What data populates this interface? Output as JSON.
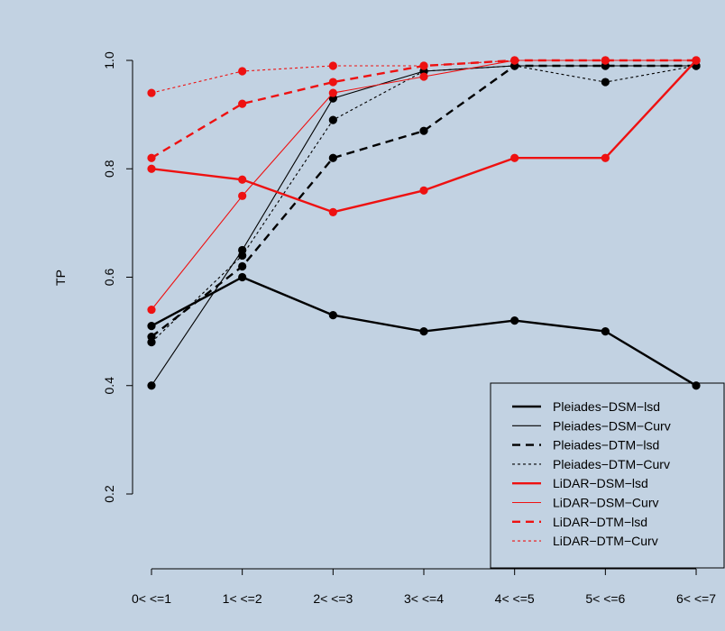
{
  "colors": {
    "background": "#c2d2e2",
    "black": "#000000",
    "red": "#ee1111"
  },
  "chart_data": {
    "type": "line",
    "title": "",
    "xlabel": "",
    "ylabel": "TP",
    "categories": [
      "0< <=1",
      "1< <=2",
      "2< <=3",
      "3< <=4",
      "4< <=5",
      "5< <=6",
      "6< <=7"
    ],
    "yticks": [
      "0.2",
      "0.4",
      "0.6",
      "0.8",
      "1.0"
    ],
    "ylim": [
      0.2,
      1.0
    ],
    "grid": false,
    "legend_position": "bottom-right",
    "series": [
      {
        "name": "Pleiades−DSM−lsd",
        "color": "#000000",
        "style": "solid-thick",
        "values": [
          0.51,
          0.6,
          0.53,
          0.5,
          0.52,
          0.5,
          0.4
        ]
      },
      {
        "name": "Pleiades−DSM−Curv",
        "color": "#000000",
        "style": "solid-thin",
        "values": [
          0.4,
          0.65,
          0.93,
          0.98,
          0.99,
          0.99,
          0.99
        ]
      },
      {
        "name": "Pleiades−DTM−lsd",
        "color": "#000000",
        "style": "dashed-thick",
        "values": [
          0.49,
          0.62,
          0.82,
          0.87,
          0.99,
          0.99,
          0.99
        ]
      },
      {
        "name": "Pleiades−DTM−Curv",
        "color": "#000000",
        "style": "dotted-thin",
        "values": [
          0.48,
          0.64,
          0.89,
          0.98,
          0.99,
          0.96,
          0.99
        ]
      },
      {
        "name": "LiDAR−DSM−lsd",
        "color": "#ee1111",
        "style": "solid-thick",
        "values": [
          0.8,
          0.78,
          0.72,
          0.76,
          0.82,
          0.82,
          1.0
        ]
      },
      {
        "name": "LiDAR−DSM−Curv",
        "color": "#ee1111",
        "style": "solid-thin",
        "values": [
          0.54,
          0.75,
          0.94,
          0.97,
          1.0,
          1.0,
          1.0
        ]
      },
      {
        "name": "LiDAR−DTM−lsd",
        "color": "#ee1111",
        "style": "dashed-thick",
        "values": [
          0.82,
          0.92,
          0.96,
          0.99,
          1.0,
          1.0,
          1.0
        ]
      },
      {
        "name": "LiDAR−DTM−Curv",
        "color": "#ee1111",
        "style": "dotted-thin",
        "values": [
          0.94,
          0.98,
          0.99,
          0.99,
          1.0,
          1.0,
          1.0
        ]
      }
    ]
  }
}
